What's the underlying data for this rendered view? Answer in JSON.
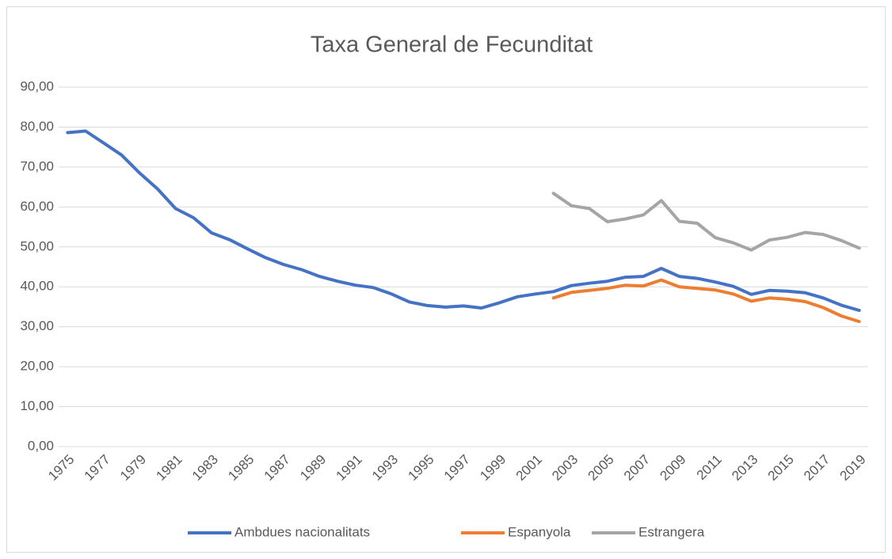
{
  "chart_data": {
    "type": "line",
    "title": "Taxa General de Fecunditat",
    "categories": [
      "1975",
      null,
      "1977",
      null,
      "1979",
      null,
      "1981",
      null,
      "1983",
      null,
      "1985",
      null,
      "1987",
      null,
      "1989",
      null,
      "1991",
      null,
      "1993",
      null,
      "1995",
      null,
      "1997",
      null,
      "1999",
      null,
      "2001",
      null,
      "2003",
      null,
      "2005",
      null,
      "2007",
      null,
      "2009",
      null,
      "2011",
      null,
      "2013",
      null,
      "2015",
      null,
      "2017",
      null,
      "2019"
    ],
    "series": [
      {
        "name": "Ambdues nacionalitats",
        "color": "#4472c4",
        "values": [
          78.6,
          79.0,
          76.0,
          73.0,
          68.5,
          64.5,
          59.6,
          57.3,
          53.5,
          51.8,
          49.5,
          47.3,
          45.6,
          44.3,
          42.6,
          41.4,
          40.4,
          39.8,
          38.2,
          36.2,
          35.3,
          34.9,
          35.2,
          34.7,
          36.0,
          37.5,
          38.2,
          38.8,
          40.3,
          40.9,
          41.4,
          42.4,
          42.6,
          44.6,
          42.6,
          42.1,
          41.2,
          40.1,
          38.1,
          39.1,
          38.9,
          38.5,
          37.2,
          35.4,
          34.1
        ]
      },
      {
        "name": "Espanyola",
        "color": "#ed7d31",
        "values": [
          null,
          null,
          null,
          null,
          null,
          null,
          null,
          null,
          null,
          null,
          null,
          null,
          null,
          null,
          null,
          null,
          null,
          null,
          null,
          null,
          null,
          null,
          null,
          null,
          null,
          null,
          null,
          37.2,
          38.6,
          39.1,
          39.6,
          40.4,
          40.2,
          41.7,
          40.0,
          39.6,
          39.2,
          38.2,
          36.4,
          37.2,
          36.9,
          36.3,
          34.8,
          32.7,
          31.3
        ]
      },
      {
        "name": "Estrangera",
        "color": "#a5a5a5",
        "values": [
          null,
          null,
          null,
          null,
          null,
          null,
          null,
          null,
          null,
          null,
          null,
          null,
          null,
          null,
          null,
          null,
          null,
          null,
          null,
          null,
          null,
          null,
          null,
          null,
          null,
          null,
          null,
          63.4,
          60.3,
          59.6,
          56.3,
          57.0,
          58.0,
          61.6,
          56.4,
          55.9,
          52.3,
          51.0,
          49.2,
          51.7,
          52.4,
          53.6,
          53.1,
          51.6,
          49.7
        ]
      }
    ],
    "ylim": [
      0,
      90
    ],
    "yticks": [
      {
        "value": 0,
        "label": "0,00"
      },
      {
        "value": 10,
        "label": "10,00"
      },
      {
        "value": 20,
        "label": "20,00"
      },
      {
        "value": 30,
        "label": "30,00"
      },
      {
        "value": 40,
        "label": "40,00"
      },
      {
        "value": 50,
        "label": "50,00"
      },
      {
        "value": 60,
        "label": "60,00"
      },
      {
        "value": 70,
        "label": "70,00"
      },
      {
        "value": 80,
        "label": "80,00"
      },
      {
        "value": 90,
        "label": "90,00"
      }
    ],
    "grid": true,
    "legend": "bottom"
  }
}
